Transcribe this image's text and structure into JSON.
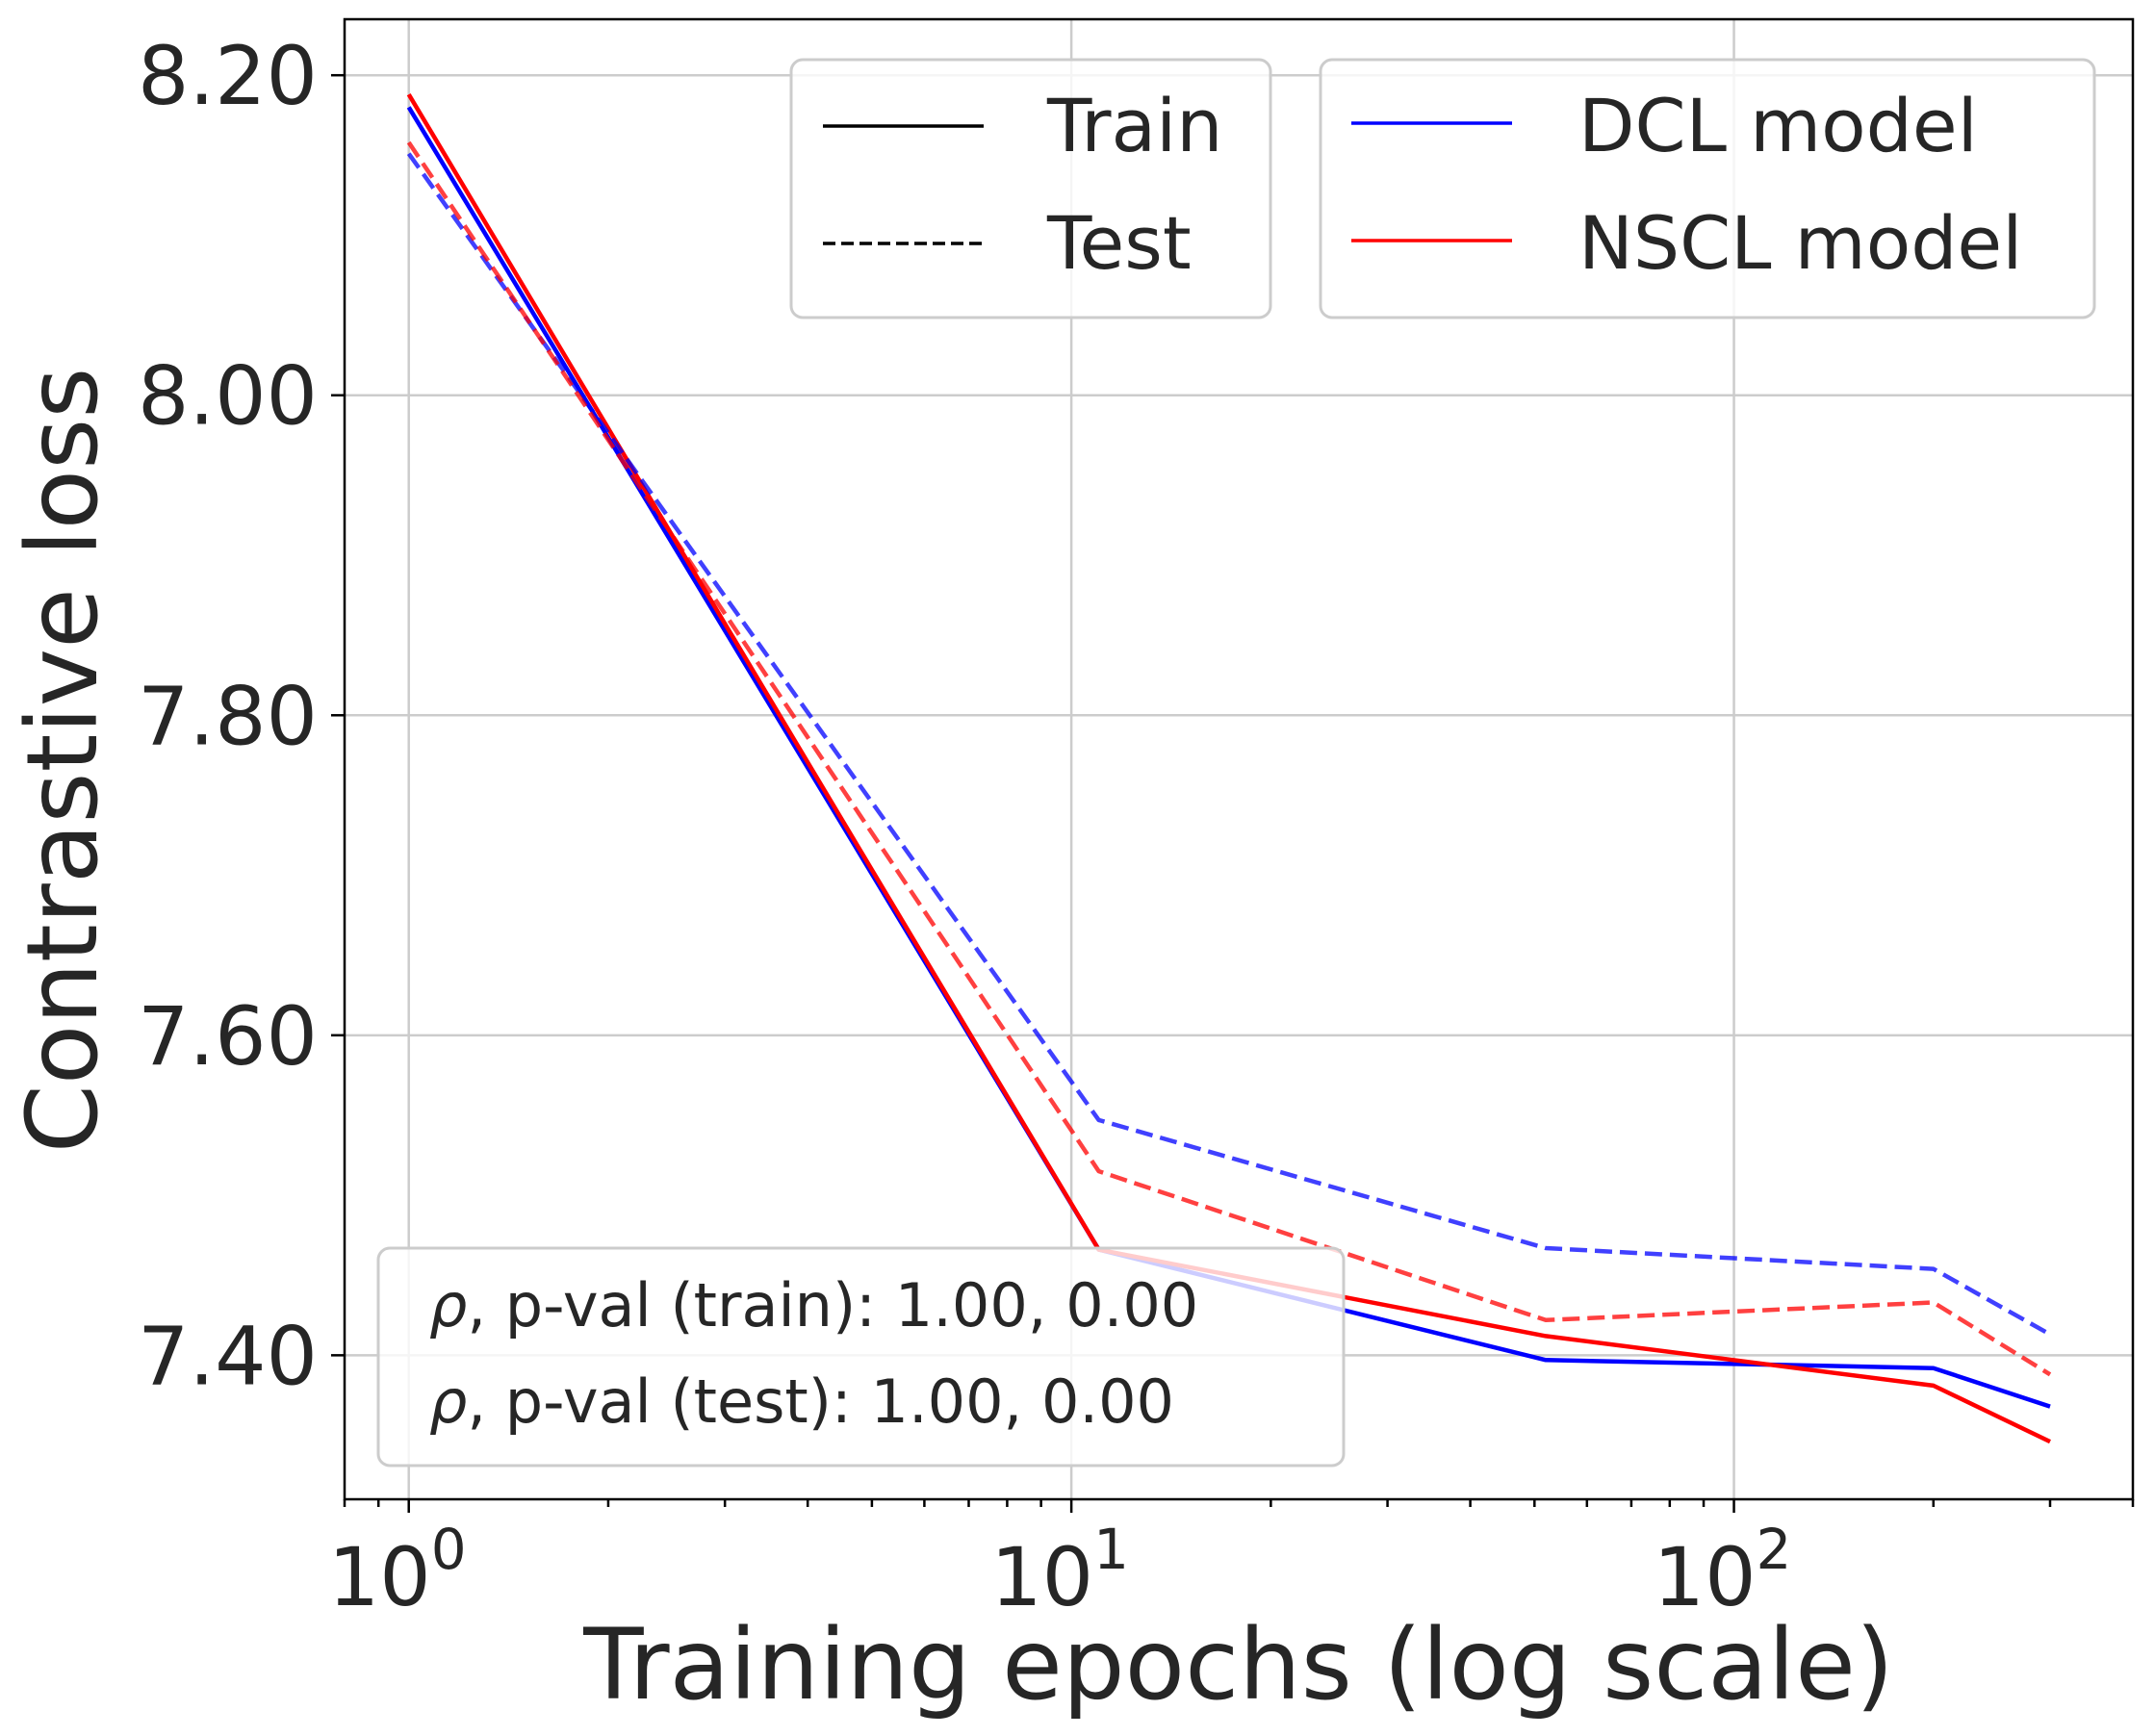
{
  "chart_data": {
    "type": "line",
    "xlabel": "Training epochs (log scale)",
    "ylabel": "Contrastive loss",
    "x_scale": "log",
    "xlim": [
      0.8,
      400
    ],
    "ylim": [
      7.31,
      8.235
    ],
    "grid": true,
    "x_ticks": [
      {
        "value": 1,
        "base": "10",
        "exp": "0"
      },
      {
        "value": 10,
        "base": "10",
        "exp": "1"
      },
      {
        "value": 100,
        "base": "10",
        "exp": "2"
      }
    ],
    "y_ticks": [
      {
        "value": 7.4,
        "label": "7.40"
      },
      {
        "value": 7.6,
        "label": "7.60"
      },
      {
        "value": 7.8,
        "label": "7.80"
      },
      {
        "value": 8.0,
        "label": "8.00"
      },
      {
        "value": 8.2,
        "label": "8.20"
      }
    ],
    "series": [
      {
        "name": "DCL model",
        "split": "Train",
        "color": "#0000ff",
        "dash": "solid",
        "opacity": 1.0,
        "x": [
          1,
          11,
          52,
          200,
          300
        ],
        "y": [
          8.18,
          7.466,
          7.397,
          7.392,
          7.368
        ]
      },
      {
        "name": "NSCL model",
        "split": "Train",
        "color": "#ff0000",
        "dash": "solid",
        "opacity": 1.0,
        "x": [
          1,
          11,
          52,
          200,
          300
        ],
        "y": [
          8.188,
          7.466,
          7.412,
          7.381,
          7.346
        ]
      },
      {
        "name": "DCL model",
        "split": "Test",
        "color": "#0000ff",
        "dash": "dashed",
        "opacity": 0.75,
        "x": [
          1,
          11,
          52,
          200,
          300
        ],
        "y": [
          8.151,
          7.547,
          7.467,
          7.454,
          7.413
        ]
      },
      {
        "name": "NSCL model",
        "split": "Test",
        "color": "#ff0000",
        "dash": "dashed",
        "opacity": 0.75,
        "x": [
          1,
          11,
          52,
          200,
          300
        ],
        "y": [
          8.158,
          7.515,
          7.422,
          7.433,
          7.388
        ]
      }
    ],
    "legend_split": {
      "position": "top-center",
      "entries": [
        {
          "label": "Train",
          "color": "#000000",
          "dash": "solid"
        },
        {
          "label": "Test",
          "color": "#000000",
          "dash": "dashed"
        }
      ]
    },
    "legend_model": {
      "position": "top-right",
      "entries": [
        {
          "label": "DCL model",
          "color": "#0000ff",
          "dash": "solid"
        },
        {
          "label": "NSCL model",
          "color": "#ff0000",
          "dash": "solid"
        }
      ]
    },
    "annotation": {
      "position": "bottom-left",
      "lines": [
        {
          "symbol": "ρ",
          "text": ", p-val (train):  1.00, 0.00"
        },
        {
          "symbol": "ρ",
          "text": ", p-val (test):  1.00, 0.00"
        }
      ]
    }
  }
}
